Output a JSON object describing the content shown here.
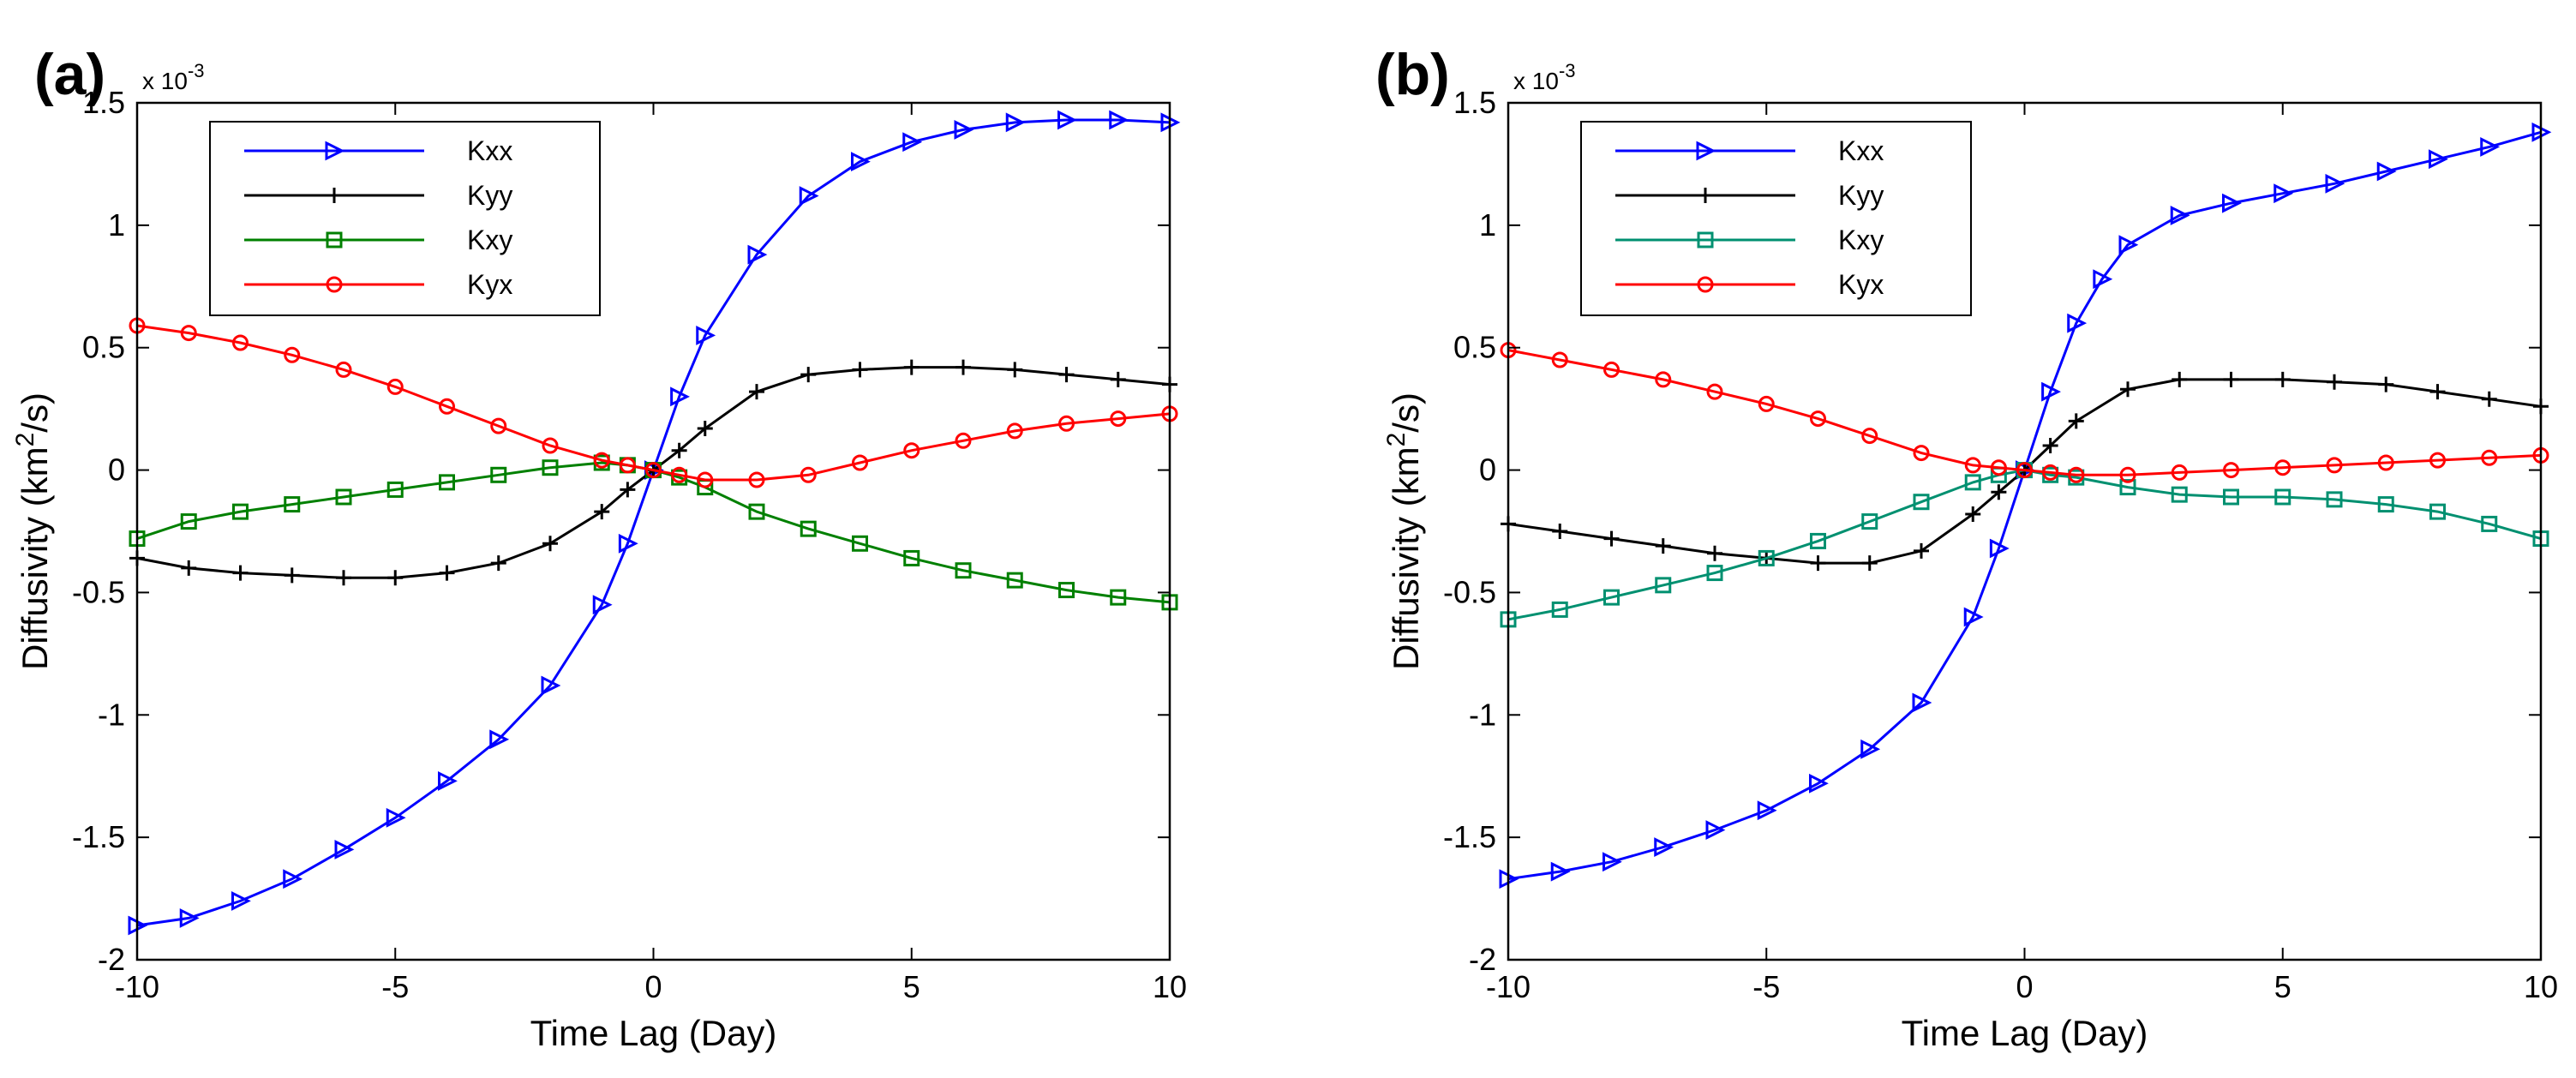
{
  "chart_data": [
    {
      "type": "line",
      "panel_label": "(a)",
      "xlabel": "Time Lag (Day)",
      "ylabel_main": "Diffusivity (km",
      "ylabel_sup": "2",
      "ylabel_end": "/s)",
      "exponent_base": "x 10",
      "exponent_power": "-3",
      "xlim": [
        -10,
        10
      ],
      "ylim": [
        -2,
        1.5
      ],
      "xticks": [
        -10,
        -5,
        0,
        5,
        10
      ],
      "yticks": [
        -2,
        -1.5,
        -1,
        -0.5,
        0,
        0.5,
        1,
        1.5
      ],
      "xtick_labels": [
        "-10",
        "-5",
        "0",
        "5",
        "10"
      ],
      "ytick_labels": [
        "-2",
        "-1.5",
        "-1",
        "-0.5",
        "0",
        "0.5",
        "1",
        "1.5"
      ],
      "legend_position": "top-left",
      "series": [
        {
          "name": "Kxx",
          "color": "#0000ff",
          "marker": "triangle-right",
          "x": [
            -10,
            -9,
            -8,
            -7,
            -6,
            -5,
            -4,
            -3,
            -2,
            -1,
            -0.5,
            0,
            0.5,
            1,
            2,
            3,
            4,
            5,
            6,
            7,
            8,
            9,
            10
          ],
          "y": [
            -1.86,
            -1.83,
            -1.76,
            -1.67,
            -1.55,
            -1.42,
            -1.27,
            -1.1,
            -0.88,
            -0.55,
            -0.3,
            0.0,
            0.3,
            0.55,
            0.88,
            1.12,
            1.26,
            1.34,
            1.39,
            1.42,
            1.43,
            1.43,
            1.42
          ]
        },
        {
          "name": "Kyy",
          "color": "#000000",
          "marker": "plus",
          "x": [
            -10,
            -9,
            -8,
            -7,
            -6,
            -5,
            -4,
            -3,
            -2,
            -1,
            -0.5,
            0,
            0.5,
            1,
            2,
            3,
            4,
            5,
            6,
            7,
            8,
            9,
            10
          ],
          "y": [
            -0.36,
            -0.4,
            -0.42,
            -0.43,
            -0.44,
            -0.44,
            -0.42,
            -0.38,
            -0.3,
            -0.17,
            -0.08,
            0.0,
            0.08,
            0.17,
            0.32,
            0.39,
            0.41,
            0.42,
            0.42,
            0.41,
            0.39,
            0.37,
            0.35
          ]
        },
        {
          "name": "Kxy",
          "color": "#008000",
          "marker": "square",
          "x": [
            -10,
            -9,
            -8,
            -7,
            -6,
            -5,
            -4,
            -3,
            -2,
            -1,
            -0.5,
            0,
            0.5,
            1,
            2,
            3,
            4,
            5,
            6,
            7,
            8,
            9,
            10
          ],
          "y": [
            -0.28,
            -0.21,
            -0.17,
            -0.14,
            -0.11,
            -0.08,
            -0.05,
            -0.02,
            0.01,
            0.03,
            0.02,
            0.0,
            -0.03,
            -0.07,
            -0.17,
            -0.24,
            -0.3,
            -0.36,
            -0.41,
            -0.45,
            -0.49,
            -0.52,
            -0.54
          ]
        },
        {
          "name": "Kyx",
          "color": "#ff0000",
          "marker": "circle",
          "x": [
            -10,
            -9,
            -8,
            -7,
            -6,
            -5,
            -4,
            -3,
            -2,
            -1,
            -0.5,
            0,
            0.5,
            1,
            2,
            3,
            4,
            5,
            6,
            7,
            8,
            9,
            10
          ],
          "y": [
            0.59,
            0.56,
            0.52,
            0.47,
            0.41,
            0.34,
            0.26,
            0.18,
            0.1,
            0.04,
            0.02,
            0.0,
            -0.02,
            -0.04,
            -0.04,
            -0.02,
            0.03,
            0.08,
            0.12,
            0.16,
            0.19,
            0.21,
            0.23
          ]
        }
      ]
    },
    {
      "type": "line",
      "panel_label": "(b)",
      "xlabel": "Time Lag (Day)",
      "ylabel_main": "Diffusivity (km",
      "ylabel_sup": "2",
      "ylabel_end": "/s)",
      "exponent_base": "x 10",
      "exponent_power": "-3",
      "xlim": [
        -10,
        10
      ],
      "ylim": [
        -2,
        1.5
      ],
      "xticks": [
        -10,
        -5,
        0,
        5,
        10
      ],
      "yticks": [
        -2,
        -1.5,
        -1,
        -0.5,
        0,
        0.5,
        1,
        1.5
      ],
      "xtick_labels": [
        "-10",
        "-5",
        "0",
        "5",
        "10"
      ],
      "ytick_labels": [
        "-2",
        "-1.5",
        "-1",
        "-0.5",
        "0",
        "0.5",
        "1",
        "1.5"
      ],
      "legend_position": "top-left",
      "series": [
        {
          "name": "Kxx",
          "color": "#0000ff",
          "marker": "triangle-right",
          "x": [
            -10,
            -9,
            -8,
            -7,
            -6,
            -5,
            -4,
            -3,
            -2,
            -1,
            -0.5,
            0,
            0.5,
            1,
            1.5,
            2,
            3,
            4,
            5,
            6,
            7,
            8,
            9,
            10
          ],
          "y": [
            -1.67,
            -1.64,
            -1.6,
            -1.54,
            -1.47,
            -1.39,
            -1.28,
            -1.14,
            -0.95,
            -0.6,
            -0.32,
            0.0,
            0.32,
            0.6,
            0.78,
            0.92,
            1.04,
            1.09,
            1.13,
            1.17,
            1.22,
            1.27,
            1.32,
            1.38
          ]
        },
        {
          "name": "Kyy",
          "color": "#000000",
          "marker": "plus",
          "x": [
            -10,
            -9,
            -8,
            -7,
            -6,
            -5,
            -4,
            -3,
            -2,
            -1,
            -0.5,
            0,
            0.5,
            1,
            2,
            3,
            4,
            5,
            6,
            7,
            8,
            9,
            10
          ],
          "y": [
            -0.22,
            -0.25,
            -0.28,
            -0.31,
            -0.34,
            -0.36,
            -0.38,
            -0.38,
            -0.33,
            -0.18,
            -0.09,
            0.0,
            0.1,
            0.2,
            0.33,
            0.37,
            0.37,
            0.37,
            0.36,
            0.35,
            0.32,
            0.29,
            0.26
          ]
        },
        {
          "name": "Kxy",
          "color": "#009070",
          "marker": "square",
          "x": [
            -10,
            -9,
            -8,
            -7,
            -6,
            -5,
            -4,
            -3,
            -2,
            -1,
            -0.5,
            0,
            0.5,
            1,
            2,
            3,
            4,
            5,
            6,
            7,
            8,
            9,
            10
          ],
          "y": [
            -0.61,
            -0.57,
            -0.52,
            -0.47,
            -0.42,
            -0.36,
            -0.29,
            -0.21,
            -0.13,
            -0.05,
            -0.02,
            0.0,
            -0.02,
            -0.03,
            -0.07,
            -0.1,
            -0.11,
            -0.11,
            -0.12,
            -0.14,
            -0.17,
            -0.22,
            -0.28
          ]
        },
        {
          "name": "Kyx",
          "color": "#ff0000",
          "marker": "circle",
          "x": [
            -10,
            -9,
            -8,
            -7,
            -6,
            -5,
            -4,
            -3,
            -2,
            -1,
            -0.5,
            0,
            0.5,
            1,
            2,
            3,
            4,
            5,
            6,
            7,
            8,
            9,
            10
          ],
          "y": [
            0.49,
            0.45,
            0.41,
            0.37,
            0.32,
            0.27,
            0.21,
            0.14,
            0.07,
            0.02,
            0.01,
            0.0,
            -0.01,
            -0.02,
            -0.02,
            -0.01,
            0.0,
            0.01,
            0.02,
            0.03,
            0.04,
            0.05,
            0.06
          ]
        }
      ]
    }
  ]
}
